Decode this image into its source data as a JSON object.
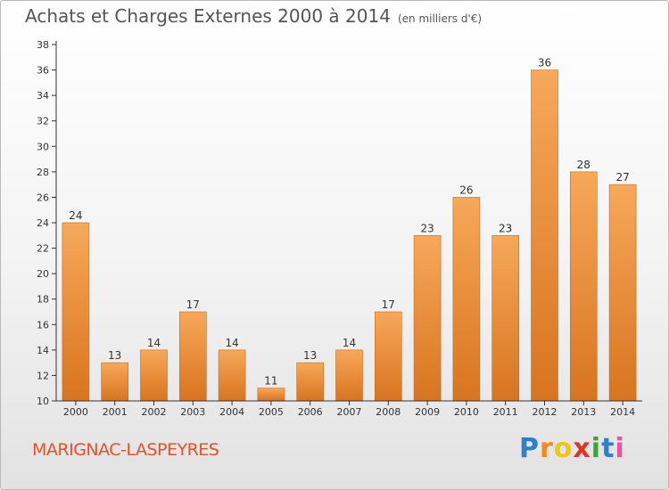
{
  "header": {
    "title": "Achats et Charges Externes 2000 à 2014",
    "subtitle": "(en milliers d'€)"
  },
  "footer": {
    "city": "MARIGNAC-LASPEYRES",
    "logo": {
      "letters": [
        "P",
        "r",
        "o",
        "x",
        "i",
        "t",
        "i"
      ],
      "colors": [
        "#2f7fd0",
        "#f08a1c",
        "#f0c419",
        "#e0342b",
        "#3aa53a",
        "#2f7fd0",
        "#e05aa0"
      ]
    }
  },
  "colors": {
    "bar_top": "#f7a85a",
    "bar_bottom": "#d8741f",
    "axis": "#333333",
    "grid": "#cccccc",
    "city": "#e8502a"
  },
  "chart_data": {
    "type": "bar",
    "title": "Achats et Charges Externes 2000 à 2014",
    "subtitle": "(en milliers d'€)",
    "categories": [
      "2000",
      "2001",
      "2002",
      "2003",
      "2004",
      "2005",
      "2006",
      "2007",
      "2008",
      "2009",
      "2010",
      "2011",
      "2012",
      "2013",
      "2014"
    ],
    "values": [
      24,
      13,
      14,
      17,
      14,
      11,
      13,
      14,
      17,
      23,
      26,
      23,
      36,
      28,
      27
    ],
    "ylim": [
      10,
      38
    ],
    "yticks": [
      10,
      12,
      14,
      16,
      18,
      20,
      22,
      24,
      26,
      28,
      30,
      32,
      34,
      36,
      38
    ],
    "grid": false,
    "xlabel": "",
    "ylabel": ""
  }
}
